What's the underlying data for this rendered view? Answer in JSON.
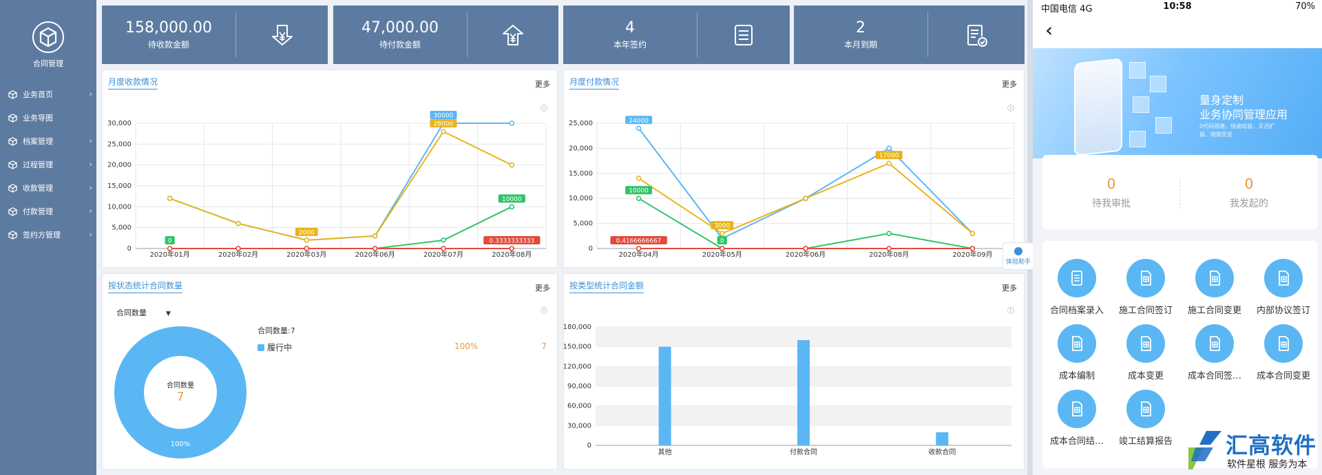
{
  "sidebar": {
    "brand_label": "合同管理",
    "items": [
      {
        "label": "业务首页",
        "arrow": true
      },
      {
        "label": "业务导图",
        "arrow": false
      },
      {
        "label": "档案管理",
        "arrow": true
      },
      {
        "label": "过程管理",
        "arrow": true
      },
      {
        "label": "收款管理",
        "arrow": true
      },
      {
        "label": "付款管理",
        "arrow": true
      },
      {
        "label": "签约方管理",
        "arrow": true
      }
    ]
  },
  "stats": [
    {
      "value": "158,000.00",
      "label": "待收款金额",
      "icon": "yen-receive-icon"
    },
    {
      "value": "47,000.00",
      "label": "待付款金额",
      "icon": "yen-pay-icon"
    },
    {
      "value": "4",
      "label": "本年签约",
      "icon": "document-list-icon"
    },
    {
      "value": "2",
      "label": "本月到期",
      "icon": "document-check-icon"
    }
  ],
  "panels": {
    "receipt": {
      "title": "月度收款情况",
      "more": "更多"
    },
    "payment": {
      "title": "月度付款情况",
      "more": "更多"
    },
    "status": {
      "title": "按状态统计合同数量",
      "more": "更多"
    },
    "type": {
      "title": "按类型统计合同金额",
      "more": "更多"
    }
  },
  "status_panel": {
    "dropdown": "合同数量",
    "legend_title": "合同数量:7",
    "legend_items": [
      {
        "name": "履行中",
        "percent": "100%",
        "count": "7"
      }
    ],
    "donut_center_label": "合同数量",
    "donut_center_value": "7",
    "donut_label": "100%"
  },
  "assistant_label": "体验助手",
  "mobile": {
    "status_bar": {
      "carrier": "中国电信  4G",
      "time": "10:58",
      "battery": "70%"
    },
    "banner": {
      "title1": "量身定制",
      "title2": "业务协同管理应用",
      "subtitle": "0代码搭建，快速组装，灵活扩展，随需而变"
    },
    "approvals": [
      {
        "value": "0",
        "label": "待我审批"
      },
      {
        "value": "0",
        "label": "我发起的"
      }
    ],
    "apps": [
      {
        "label": "合同档案录入",
        "icon": "archive-icon"
      },
      {
        "label": "施工合同签订",
        "icon": "contract-icon"
      },
      {
        "label": "施工合同变更",
        "icon": "contract-icon"
      },
      {
        "label": "内部协议签订",
        "icon": "contract-icon"
      },
      {
        "label": "成本编制",
        "icon": "contract-icon"
      },
      {
        "label": "成本变更",
        "icon": "contract-icon"
      },
      {
        "label": "成本合同签…",
        "icon": "contract-icon"
      },
      {
        "label": "成本合同变更",
        "icon": "contract-icon"
      },
      {
        "label": "成本合同结…",
        "icon": "contract-icon"
      },
      {
        "label": "竣工结算报告",
        "icon": "contract-icon"
      }
    ]
  },
  "logo": {
    "name": "汇高软件",
    "slogan": "软件星根  服务为本"
  },
  "colors": {
    "blue": "#5ab7f4",
    "yellow": "#e8b41c",
    "green": "#2ec46b",
    "red": "#e24a3b",
    "sidebar": "#5d7ba0",
    "accent": "#3b8fd8",
    "orange": "#e89a3c"
  },
  "chart_data": [
    {
      "type": "line",
      "title": "月度收款情况",
      "categories": [
        "2020年01月",
        "2020年02月",
        "2020年03月",
        "2020年06月",
        "2020年07月",
        "2020年08月"
      ],
      "ylim": [
        0,
        30000
      ],
      "yticks": [
        0,
        5000,
        10000,
        15000,
        20000,
        25000,
        30000
      ],
      "ytick_labels": [
        "0",
        "5,000",
        "10,000",
        "15,000",
        "20,000",
        "25,000",
        "30,000"
      ],
      "series": [
        {
          "color": "#5ab7f4",
          "values": [
            12000,
            6000,
            2000,
            3000,
            30000,
            30000
          ]
        },
        {
          "color": "#e8b41c",
          "values": [
            12000,
            6000,
            2000,
            3000,
            28000,
            20000
          ]
        },
        {
          "color": "#2ec46b",
          "values": [
            0,
            0,
            0,
            0,
            2000,
            10000
          ]
        },
        {
          "color": "#e24a3b",
          "values": [
            0,
            0,
            0,
            0,
            0,
            0.3333333333
          ]
        }
      ],
      "annotations": [
        {
          "series": 3,
          "index": 0,
          "text": "0",
          "color": "#2ec46b"
        },
        {
          "series": 1,
          "index": 2,
          "text": "2000",
          "color": "#e8b41c"
        },
        {
          "series": 0,
          "index": 4,
          "text": "30000",
          "color": "#5ab7f4"
        },
        {
          "series": 1,
          "index": 4,
          "text": "28000",
          "color": "#e8b41c"
        },
        {
          "series": 2,
          "index": 5,
          "text": "10000",
          "color": "#2ec46b"
        },
        {
          "series": 3,
          "index": 5,
          "text": "0.3333333333",
          "color": "#e24a3b"
        }
      ]
    },
    {
      "type": "line",
      "title": "月度付款情况",
      "categories": [
        "2020年04月",
        "2020年05月",
        "2020年06月",
        "2020年08月",
        "2020年09月"
      ],
      "ylim": [
        0,
        25000
      ],
      "yticks": [
        0,
        5000,
        10000,
        15000,
        20000,
        25000
      ],
      "ytick_labels": [
        "0",
        "5,000",
        "10,000",
        "15,000",
        "20,000",
        "25,000"
      ],
      "series": [
        {
          "color": "#5ab7f4",
          "values": [
            24000,
            2000,
            10000,
            20000,
            3000
          ]
        },
        {
          "color": "#e8b41c",
          "values": [
            14000,
            3000,
            10000,
            17000,
            3000
          ]
        },
        {
          "color": "#2ec46b",
          "values": [
            10000,
            0,
            0,
            3000,
            0
          ]
        },
        {
          "color": "#e24a3b",
          "values": [
            0.4166666667,
            0,
            0,
            0,
            0
          ]
        }
      ],
      "annotations": [
        {
          "series": 0,
          "index": 0,
          "text": "24000",
          "color": "#5ab7f4"
        },
        {
          "series": 2,
          "index": 0,
          "text": "10000",
          "color": "#2ec46b"
        },
        {
          "series": 3,
          "index": 0,
          "text": "0.4166666667",
          "color": "#e24a3b"
        },
        {
          "series": 1,
          "index": 1,
          "text": "3000",
          "color": "#e8b41c"
        },
        {
          "series": 2,
          "index": 1,
          "text": "0",
          "color": "#2ec46b"
        },
        {
          "series": 1,
          "index": 3,
          "text": "17000",
          "color": "#e8b41c"
        }
      ]
    },
    {
      "type": "pie",
      "title": "按状态统计合同数量",
      "slices": [
        {
          "name": "履行中",
          "value": 7,
          "percent": "100%"
        }
      ]
    },
    {
      "type": "bar",
      "title": "按类型统计合同金额",
      "categories": [
        "其他",
        "付款合同",
        "收款合同"
      ],
      "values": [
        150000,
        160000,
        20000
      ],
      "ylim": [
        0,
        180000
      ],
      "yticks": [
        0,
        30000,
        60000,
        90000,
        120000,
        150000,
        180000
      ],
      "ytick_labels": [
        "0",
        "30,000",
        "60,000",
        "90,000",
        "120,000",
        "150,000",
        "180,000"
      ]
    }
  ]
}
